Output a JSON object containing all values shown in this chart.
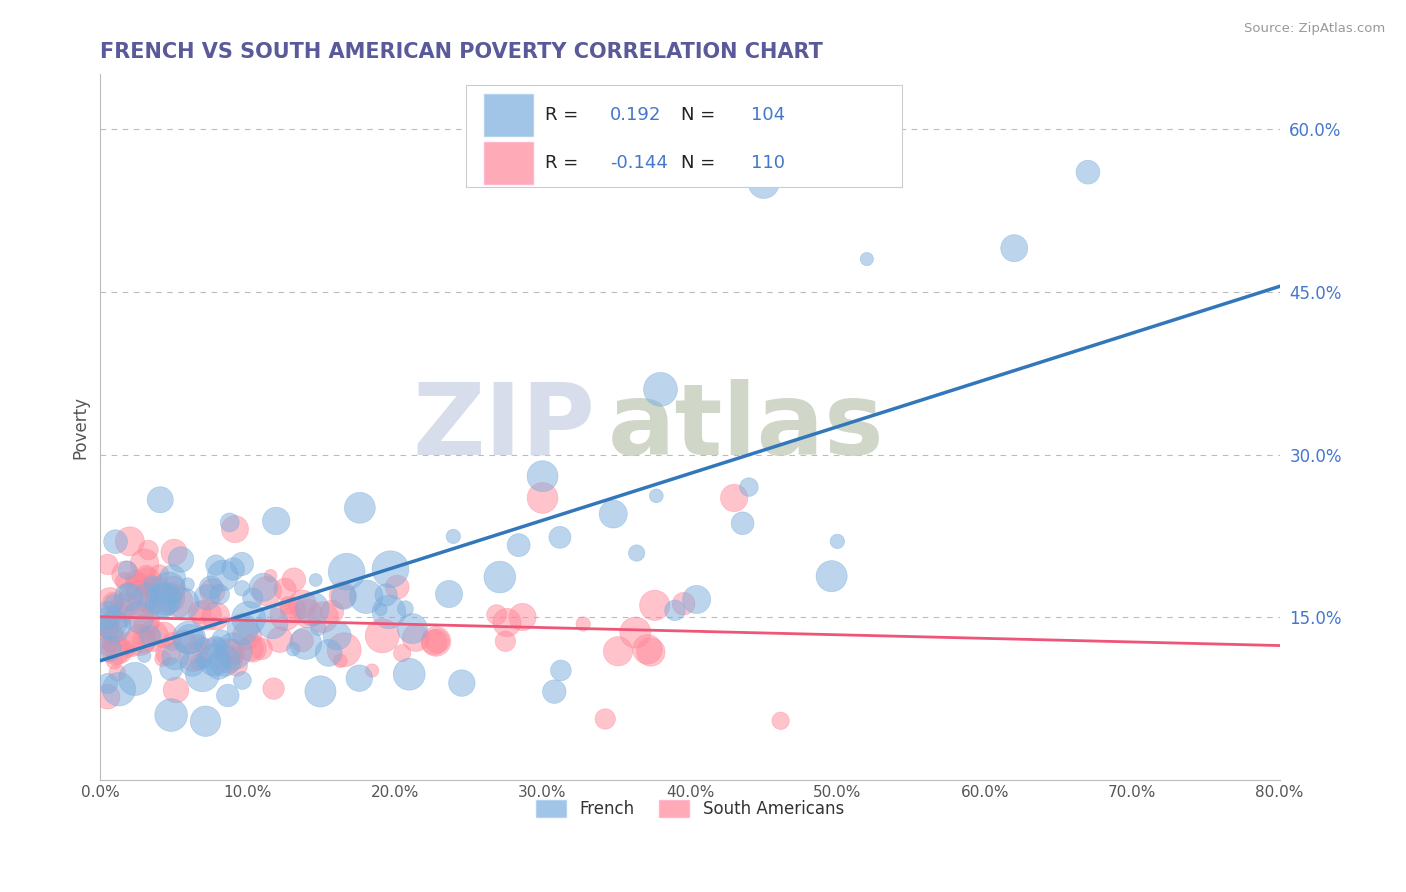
{
  "title": "FRENCH VS SOUTH AMERICAN POVERTY CORRELATION CHART",
  "title_color": "#5a5a9a",
  "source_text": "Source: ZipAtlas.com",
  "ylabel": "Poverty",
  "xlim": [
    0.0,
    0.8
  ],
  "ylim": [
    0.0,
    0.65
  ],
  "xticks": [
    0.0,
    0.1,
    0.2,
    0.3,
    0.4,
    0.5,
    0.6,
    0.7,
    0.8
  ],
  "xtick_labels": [
    "0.0%",
    "10.0%",
    "20.0%",
    "30.0%",
    "40.0%",
    "50.0%",
    "60.0%",
    "70.0%",
    "80.0%"
  ],
  "ytick_right_vals": [
    0.15,
    0.3,
    0.45,
    0.6
  ],
  "ytick_right_labels": [
    "15.0%",
    "30.0%",
    "45.0%",
    "60.0%"
  ],
  "french_color": "#7aaddd",
  "south_color": "#ff8899",
  "french_line_color": "#3377bb",
  "south_line_color": "#ee5577",
  "french_R": 0.192,
  "french_N": 104,
  "south_R": -0.144,
  "south_N": 110,
  "legend_labels": [
    "French",
    "South Americans"
  ],
  "watermark_zip": "ZIP",
  "watermark_atlas": "atlas",
  "watermark_color_zip": "#d0d8e8",
  "watermark_color_atlas": "#c8d0c0",
  "grid_color": "#bbbbbb",
  "blue_text_color": "#4477cc"
}
